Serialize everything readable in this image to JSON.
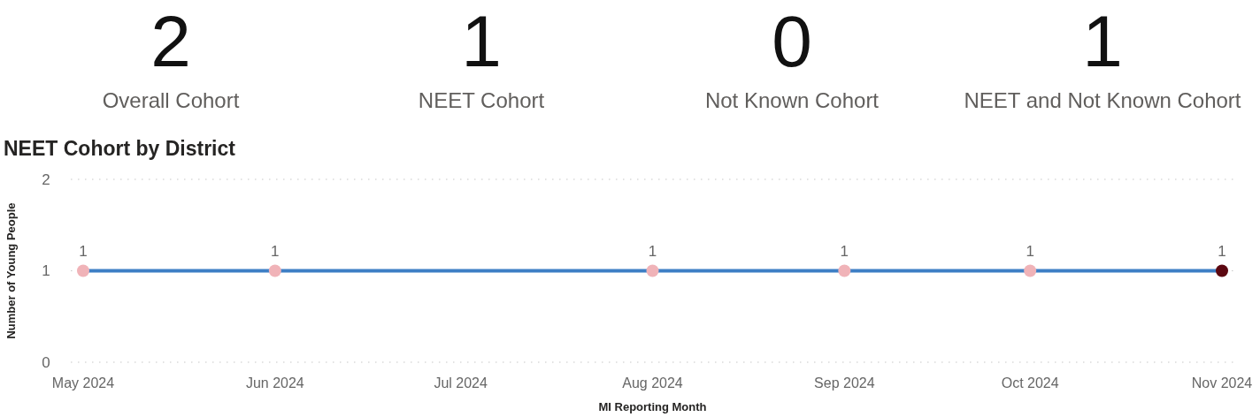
{
  "chart_data": [
    {
      "type": "other",
      "categories": [
        "Overall Cohort",
        "NEET Cohort",
        "Not Known Cohort",
        "NEET and Not Known Cohort"
      ],
      "values": [
        2,
        1,
        0,
        1
      ],
      "data_labels": true
    },
    {
      "type": "line",
      "title": "NEET Cohort by District",
      "xlabel": "MI Reporting Month",
      "ylabel": "Number of Young People",
      "x": [
        "2024-05",
        "2024-06",
        "2024-08",
        "2024-09",
        "2024-10",
        "2024-11"
      ],
      "series": [
        {
          "color": "#3d7fc5",
          "colors": [
            "#f0b3b8",
            "#f0b3b8",
            "#f0b3b8",
            "#f0b3b8",
            "#f0b3b8",
            "#5c0811"
          ],
          "values": [
            1,
            1,
            1,
            1,
            1,
            1
          ]
        }
      ],
      "xlim": [
        "2024-04-29",
        "2024-11-03"
      ],
      "xticks": [
        {
          "value": "2024-05",
          "label": "May 2024"
        },
        {
          "value": "2024-06",
          "label": "Jun 2024"
        },
        {
          "value": "2024-07",
          "label": "Jul 2024"
        },
        {
          "value": "2024-08",
          "label": "Aug 2024"
        },
        {
          "value": "2024-09",
          "label": "Sep 2024"
        },
        {
          "value": "2024-10",
          "label": "Oct 2024"
        },
        {
          "value": "2024-11",
          "label": "Nov 2024"
        }
      ],
      "ylim": [
        0,
        2
      ],
      "yticks": [
        0,
        1,
        2
      ],
      "grid": "y",
      "data_labels": true,
      "marker": "circle",
      "line_style": "solid"
    }
  ]
}
